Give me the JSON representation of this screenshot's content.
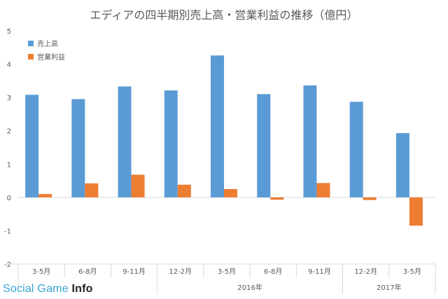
{
  "chart_data": {
    "type": "bar",
    "title": "エディアの四半期別売上高・営業利益の推移（億円）",
    "categories": [
      "3-5月",
      "6-8月",
      "9-11月",
      "12-2月",
      "3-5月",
      "6-8月",
      "9-11月",
      "12-2月",
      "3-5月"
    ],
    "groups": [
      {
        "label": "2016年",
        "from": 3,
        "to": 7
      },
      {
        "label": "2017年",
        "from": 7,
        "to": 9
      }
    ],
    "series": [
      {
        "name": "売上高",
        "color": "#5b9bd5",
        "values": [
          3.08,
          2.95,
          3.33,
          3.21,
          4.26,
          3.1,
          3.36,
          2.87,
          1.93
        ]
      },
      {
        "name": "営業利益",
        "color": "#ed7d31",
        "values": [
          0.1,
          0.42,
          0.68,
          0.38,
          0.25,
          -0.07,
          0.43,
          -0.08,
          -0.85
        ]
      }
    ],
    "ylim": [
      -2,
      5
    ],
    "yticks": [
      "-2",
      "-1",
      "0",
      "1",
      "2",
      "3",
      "4",
      "5"
    ],
    "legend_position": "top-left",
    "grid": false
  },
  "watermark": {
    "part1": "Social Game ",
    "part2": "Info"
  }
}
